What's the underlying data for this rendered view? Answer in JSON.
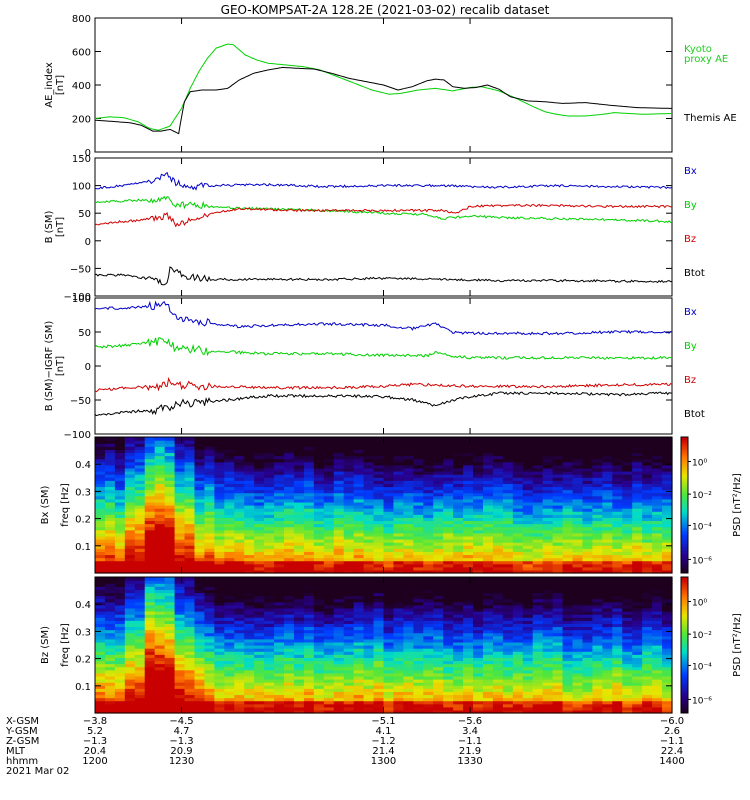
{
  "title": "GEO-KOMPSAT-2A 128.2E (2021-03-02) recalib dataset",
  "colors": {
    "black": "#000000",
    "green": "#00d000",
    "red": "#d00000",
    "blue": "#0000c8",
    "kyoto": "#22cc22"
  },
  "chart_data": [
    {
      "type": "line",
      "ylabel": "AE_index\n[nT]",
      "ylim": [
        0,
        800
      ],
      "yticks": [
        0,
        200,
        400,
        600,
        800
      ],
      "xlim": [
        1200,
        1400
      ],
      "series": [
        {
          "name": "Kyoto\nproxy AE",
          "color": "green",
          "points": [
            [
              1200,
              200
            ],
            [
              1205,
              210
            ],
            [
              1210,
              205
            ],
            [
              1215,
              180
            ],
            [
              1219,
              140
            ],
            [
              1222,
              130
            ],
            [
              1226,
              155
            ],
            [
              1230,
              260
            ],
            [
              1233,
              380
            ],
            [
              1236,
              480
            ],
            [
              1239,
              560
            ],
            [
              1242,
              620
            ],
            [
              1246,
              645
            ],
            [
              1248,
              640
            ],
            [
              1252,
              580
            ],
            [
              1256,
              550
            ],
            [
              1260,
              530
            ],
            [
              1266,
              520
            ],
            [
              1272,
              510
            ],
            [
              1278,
              490
            ],
            [
              1284,
              450
            ],
            [
              1290,
              410
            ],
            [
              1296,
              370
            ],
            [
              1302,
              345
            ],
            [
              1306,
              350
            ],
            [
              1312,
              370
            ],
            [
              1318,
              380
            ],
            [
              1324,
              365
            ],
            [
              1330,
              385
            ],
            [
              1334,
              390
            ],
            [
              1340,
              365
            ],
            [
              1346,
              320
            ],
            [
              1352,
              270
            ],
            [
              1356,
              240
            ],
            [
              1360,
              225
            ],
            [
              1364,
              215
            ],
            [
              1370,
              215
            ],
            [
              1376,
              225
            ],
            [
              1380,
              235
            ],
            [
              1390,
              225
            ],
            [
              1400,
              230
            ]
          ]
        },
        {
          "name": "Themis AE",
          "color": "black",
          "points": [
            [
              1200,
              190
            ],
            [
              1204,
              185
            ],
            [
              1208,
              180
            ],
            [
              1212,
              175
            ],
            [
              1216,
              160
            ],
            [
              1220,
              125
            ],
            [
              1223,
              125
            ],
            [
              1226,
              135
            ],
            [
              1229,
              110
            ],
            [
              1230,
              210
            ],
            [
              1231,
              300
            ],
            [
              1233,
              360
            ],
            [
              1237,
              370
            ],
            [
              1242,
              370
            ],
            [
              1246,
              380
            ],
            [
              1250,
              430
            ],
            [
              1255,
              470
            ],
            [
              1260,
              490
            ],
            [
              1265,
              505
            ],
            [
              1270,
              500
            ],
            [
              1276,
              495
            ],
            [
              1282,
              470
            ],
            [
              1288,
              440
            ],
            [
              1294,
              420
            ],
            [
              1300,
              400
            ],
            [
              1305,
              370
            ],
            [
              1310,
              390
            ],
            [
              1315,
              425
            ],
            [
              1318,
              435
            ],
            [
              1321,
              430
            ],
            [
              1324,
              390
            ],
            [
              1328,
              380
            ],
            [
              1332,
              385
            ],
            [
              1336,
              400
            ],
            [
              1340,
              375
            ],
            [
              1344,
              330
            ],
            [
              1350,
              305
            ],
            [
              1356,
              300
            ],
            [
              1362,
              290
            ],
            [
              1370,
              295
            ],
            [
              1378,
              280
            ],
            [
              1388,
              265
            ],
            [
              1400,
              260
            ]
          ]
        }
      ]
    },
    {
      "type": "line",
      "ylabel": "B (SM)\n[nT]",
      "ylim": [
        -100,
        150
      ],
      "yticks": [
        -100,
        -50,
        0,
        50,
        100,
        150
      ],
      "xlim": [
        1200,
        1400
      ],
      "series": [
        {
          "name": "Bx",
          "color": "blue",
          "points": [
            [
              1200,
              95
            ],
            [
              1210,
              100
            ],
            [
              1220,
              110
            ],
            [
              1225,
              120
            ],
            [
              1228,
              105
            ],
            [
              1232,
              98
            ],
            [
              1240,
              100
            ],
            [
              1260,
              102
            ],
            [
              1280,
              98
            ],
            [
              1300,
              100
            ],
            [
              1320,
              100
            ],
            [
              1340,
              97
            ],
            [
              1360,
              100
            ],
            [
              1380,
              98
            ],
            [
              1400,
              97
            ]
          ]
        },
        {
          "name": "By",
          "color": "green",
          "points": [
            [
              1200,
              70
            ],
            [
              1210,
              72
            ],
            [
              1220,
              75
            ],
            [
              1225,
              80
            ],
            [
              1228,
              65
            ],
            [
              1235,
              65
            ],
            [
              1245,
              60
            ],
            [
              1260,
              58
            ],
            [
              1280,
              55
            ],
            [
              1300,
              50
            ],
            [
              1315,
              48
            ],
            [
              1320,
              40
            ],
            [
              1330,
              45
            ],
            [
              1340,
              42
            ],
            [
              1360,
              40
            ],
            [
              1380,
              38
            ],
            [
              1400,
              35
            ]
          ]
        },
        {
          "name": "Bz",
          "color": "red",
          "points": [
            [
              1200,
              30
            ],
            [
              1210,
              35
            ],
            [
              1220,
              40
            ],
            [
              1225,
              45
            ],
            [
              1228,
              30
            ],
            [
              1232,
              35
            ],
            [
              1240,
              50
            ],
            [
              1250,
              58
            ],
            [
              1270,
              55
            ],
            [
              1290,
              55
            ],
            [
              1310,
              55
            ],
            [
              1320,
              55
            ],
            [
              1325,
              50
            ],
            [
              1330,
              62
            ],
            [
              1340,
              64
            ],
            [
              1360,
              64
            ],
            [
              1380,
              62
            ],
            [
              1400,
              62
            ]
          ]
        },
        {
          "name": "Btot",
          "color": "black",
          "points": [
            [
              1200,
              -62
            ],
            [
              1210,
              -62
            ],
            [
              1220,
              -70
            ],
            [
              1225,
              -80
            ],
            [
              1226,
              -50
            ],
            [
              1228,
              -55
            ],
            [
              1232,
              -65
            ],
            [
              1240,
              -70
            ],
            [
              1260,
              -70
            ],
            [
              1280,
              -70
            ],
            [
              1300,
              -68
            ],
            [
              1320,
              -70
            ],
            [
              1340,
              -72
            ],
            [
              1360,
              -72
            ],
            [
              1380,
              -73
            ],
            [
              1400,
              -74
            ]
          ]
        }
      ]
    },
    {
      "type": "line",
      "ylabel": "B (SM)−IGRF (SM)\n[nT]",
      "ylim": [
        -100,
        100
      ],
      "yticks": [
        -100,
        -50,
        0,
        50,
        100
      ],
      "xlim": [
        1200,
        1400
      ],
      "series": [
        {
          "name": "Bx",
          "color": "blue",
          "points": [
            [
              1200,
              85
            ],
            [
              1210,
              85
            ],
            [
              1220,
              88
            ],
            [
              1225,
              90
            ],
            [
              1228,
              72
            ],
            [
              1232,
              70
            ],
            [
              1240,
              63
            ],
            [
              1250,
              58
            ],
            [
              1260,
              60
            ],
            [
              1280,
              62
            ],
            [
              1300,
              60
            ],
            [
              1310,
              55
            ],
            [
              1318,
              62
            ],
            [
              1324,
              50
            ],
            [
              1330,
              48
            ],
            [
              1340,
              48
            ],
            [
              1360,
              48
            ],
            [
              1380,
              50
            ],
            [
              1400,
              50
            ]
          ]
        },
        {
          "name": "By",
          "color": "green",
          "points": [
            [
              1200,
              28
            ],
            [
              1210,
              30
            ],
            [
              1220,
              35
            ],
            [
              1225,
              38
            ],
            [
              1228,
              25
            ],
            [
              1232,
              25
            ],
            [
              1240,
              22
            ],
            [
              1260,
              18
            ],
            [
              1280,
              18
            ],
            [
              1300,
              16
            ],
            [
              1315,
              15
            ],
            [
              1318,
              20
            ],
            [
              1324,
              15
            ],
            [
              1330,
              12
            ],
            [
              1340,
              12
            ],
            [
              1360,
              12
            ],
            [
              1380,
              12
            ],
            [
              1400,
              12
            ]
          ]
        },
        {
          "name": "Bz",
          "color": "red",
          "points": [
            [
              1200,
              -36
            ],
            [
              1210,
              -32
            ],
            [
              1220,
              -30
            ],
            [
              1225,
              -28
            ],
            [
              1226,
              -20
            ],
            [
              1228,
              -28
            ],
            [
              1240,
              -30
            ],
            [
              1260,
              -32
            ],
            [
              1280,
              -32
            ],
            [
              1300,
              -30
            ],
            [
              1310,
              -27
            ],
            [
              1320,
              -28
            ],
            [
              1330,
              -30
            ],
            [
              1340,
              -30
            ],
            [
              1360,
              -30
            ],
            [
              1380,
              -28
            ],
            [
              1400,
              -27
            ]
          ]
        },
        {
          "name": "Btot",
          "color": "black",
          "points": [
            [
              1200,
              -72
            ],
            [
              1210,
              -68
            ],
            [
              1220,
              -65
            ],
            [
              1225,
              -62
            ],
            [
              1228,
              -55
            ],
            [
              1235,
              -55
            ],
            [
              1245,
              -50
            ],
            [
              1260,
              -44
            ],
            [
              1280,
              -44
            ],
            [
              1300,
              -45
            ],
            [
              1310,
              -50
            ],
            [
              1318,
              -58
            ],
            [
              1324,
              -50
            ],
            [
              1330,
              -45
            ],
            [
              1340,
              -40
            ],
            [
              1360,
              -40
            ],
            [
              1380,
              -42
            ],
            [
              1400,
              -40
            ]
          ]
        }
      ]
    },
    {
      "type": "heatmap",
      "ylabel1": "Bx (SM)",
      "ylabel2": "freq [Hz]",
      "ylim": [
        0,
        0.5
      ],
      "yticks": [
        0.1,
        0.2,
        0.3,
        0.4
      ],
      "xlim": [
        1200,
        1400
      ],
      "colorbar_label": "PSD [nT²/Hz]"
    },
    {
      "type": "heatmap",
      "ylabel1": "Bz (SM)",
      "ylabel2": "freq [Hz]",
      "ylim": [
        0,
        0.5
      ],
      "yticks": [
        0.1,
        0.2,
        0.3,
        0.4
      ],
      "xlim": [
        1200,
        1400
      ],
      "colorbar_label": "PSD [nT²/Hz]"
    }
  ],
  "colorbar_ticks": [
    "10⁰",
    "10⁻²",
    "10⁻⁴",
    "10⁻⁶"
  ],
  "orbit_table": {
    "row_labels": [
      "X-GSM",
      "Y-GSM",
      "Z-GSM",
      "MLT",
      "hhmm",
      "2021 Mar 02"
    ],
    "columns": [
      {
        "time": 1200,
        "values": [
          "−3.8",
          "5.2",
          "−1.3",
          "20.4",
          "1200"
        ]
      },
      {
        "time": 1230,
        "values": [
          "−4.5",
          "4.7",
          "−1.3",
          "20.9",
          "1230"
        ]
      },
      {
        "time": 1300,
        "values": [
          "−5.1",
          "4.1",
          "−1.2",
          "21.4",
          "1300"
        ]
      },
      {
        "time": 1330,
        "values": [
          "−5.6",
          "3.4",
          "−1.1",
          "21.9",
          "1330"
        ]
      },
      {
        "time": 1400,
        "values": [
          "−6.0",
          "2.6",
          "−1.1",
          "22.4",
          "1400"
        ]
      }
    ]
  }
}
